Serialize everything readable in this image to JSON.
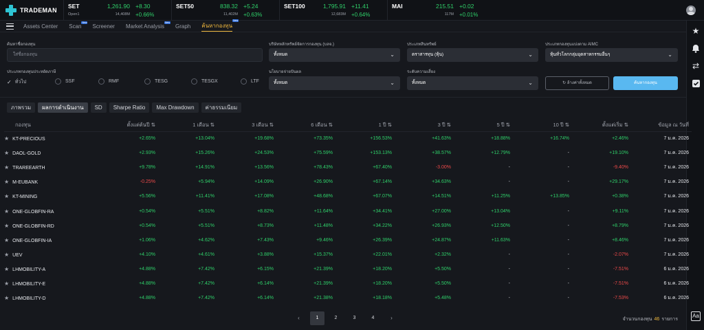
{
  "brand": {
    "name": "TRADEMAN"
  },
  "tickers": [
    {
      "name": "SET",
      "last": "1,261.90",
      "change": "+8.30",
      "sub": "Open1",
      "volume": "14,408M",
      "pct": "+0.66%"
    },
    {
      "name": "SET50",
      "last": "838.32",
      "change": "+5.24",
      "sub": "",
      "volume": "11,402M",
      "pct": "+0.63%"
    },
    {
      "name": "SET100",
      "last": "1,795.91",
      "change": "+11.41",
      "sub": "",
      "volume": "12,683M",
      "pct": "+0.64%"
    },
    {
      "name": "MAI",
      "last": "215.51",
      "change": "+0.02",
      "sub": "",
      "volume": "117M",
      "pct": "+0.01%"
    }
  ],
  "nav": {
    "tabs": [
      {
        "label": "Assets Center",
        "badge": ""
      },
      {
        "label": "Scan",
        "badge": "New"
      },
      {
        "label": "Screener",
        "badge": ""
      },
      {
        "label": "Market Analysis",
        "badge": "New"
      },
      {
        "label": "Graph",
        "badge": ""
      },
      {
        "label": "ค้นหากองทุน",
        "badge": "New"
      }
    ]
  },
  "filters": {
    "fund_search_label": "ค้นหาชื่อกองทุน",
    "fund_search_placeholder": "ใส่ชื่อกองทุน",
    "amc_label": "บริษัทหลักทรัพย์จัดการกองทุน (บลจ.)",
    "amc_value": "ทั้งหมด",
    "asset_label": "ประเภทสินทรัพย์",
    "asset_value": "ตราสารทุน (หุ้น)",
    "aimc_label": "ประเภทกองทุนแบ่งตาม AIMC",
    "aimc_value": "หุ้นทั่วโลกกลุ่มอุตสาหกรรมอื่นๆ",
    "type_label": "ประเภทกองทุนประหยัดภาษี",
    "type_options": [
      "ทั่วไป",
      "SSF",
      "RMF",
      "TESG",
      "TESGX",
      "LTF"
    ],
    "dividend_label": "นโยบายจ่ายปันผล",
    "dividend_value": "ทั้งหมด",
    "risk_label": "ระดับความเสี่ยง",
    "risk_value": "ทั้งหมด",
    "reset_label": "ล้างค่าทั้งหมด",
    "search_label": "ค้นหากองทุน"
  },
  "view_tabs": [
    "ภาพรวม",
    "ผลการดำเนินงาน",
    "SD",
    "Sharpe Ratio",
    "Max Drawdown",
    "ค่าธรรมเนียม"
  ],
  "table": {
    "headers": [
      "กองทุน",
      "ตั้งแต่ต้นปี ⇅",
      "1 เดือน ⇅",
      "3 เดือน ⇅",
      "6 เดือน ⇅",
      "1 ปี ⇅",
      "3 ปี ⇅",
      "5 ปี ⇅",
      "10 ปี ⇅",
      "ตั้งแต่เริ่ม ⇅",
      "ข้อมูล ณ วันที่"
    ],
    "rows": [
      [
        "KT-PRECIOUS",
        "+2.65%",
        "+13.04%",
        "+19.68%",
        "+73.35%",
        "+156.53%",
        "+41.63%",
        "+18.88%",
        "+16.74%",
        "+2.46%",
        "7 ม.ค. 2026"
      ],
      [
        "DAOL-GOLD",
        "+2.93%",
        "+15.26%",
        "+24.53%",
        "+75.59%",
        "+153.13%",
        "+38.57%",
        "+12.79%",
        "-",
        "+19.10%",
        "7 ม.ค. 2026"
      ],
      [
        "TRAREEARTH",
        "+9.78%",
        "+14.91%",
        "+13.56%",
        "+78.43%",
        "+67.40%",
        "-3.00%",
        "-",
        "-",
        "-9.40%",
        "7 ม.ค. 2026"
      ],
      [
        "M-EUBANK",
        "-0.25%",
        "+5.94%",
        "+14.09%",
        "+26.90%",
        "+67.14%",
        "+34.63%",
        "-",
        "-",
        "+29.17%",
        "7 ม.ค. 2026"
      ],
      [
        "KT-MINING",
        "+5.56%",
        "+11.41%",
        "+17.08%",
        "+48.68%",
        "+67.07%",
        "+14.51%",
        "+11.25%",
        "+13.85%",
        "+0.38%",
        "7 ม.ค. 2026"
      ],
      [
        "ONE-GLOBFIN-RA",
        "+0.54%",
        "+5.51%",
        "+8.82%",
        "+11.64%",
        "+34.41%",
        "+27.00%",
        "+13.04%",
        "-",
        "+9.11%",
        "7 ม.ค. 2026"
      ],
      [
        "ONE-GLOBFIN-RD",
        "+0.54%",
        "+5.51%",
        "+8.73%",
        "+11.48%",
        "+34.22%",
        "+26.93%",
        "+12.50%",
        "-",
        "+8.79%",
        "7 ม.ค. 2026"
      ],
      [
        "ONE-GLOBFIN-IA",
        "+1.06%",
        "+4.62%",
        "+7.43%",
        "+9.46%",
        "+26.39%",
        "+24.87%",
        "+11.63%",
        "-",
        "+8.46%",
        "7 ม.ค. 2026"
      ],
      [
        "UEV",
        "+4.10%",
        "+4.61%",
        "+3.88%",
        "+15.37%",
        "+22.01%",
        "+2.32%",
        "-",
        "-",
        "-2.07%",
        "7 ม.ค. 2026"
      ],
      [
        "LHMOBILITY-A",
        "+4.88%",
        "+7.42%",
        "+6.15%",
        "+21.39%",
        "+18.20%",
        "+5.50%",
        "-",
        "-",
        "-7.51%",
        "6 ม.ค. 2026"
      ],
      [
        "LHMOBILITY-E",
        "+4.88%",
        "+7.42%",
        "+6.14%",
        "+21.39%",
        "+18.20%",
        "+5.50%",
        "-",
        "-",
        "-7.51%",
        "6 ม.ค. 2026"
      ],
      [
        "LHMOBILITY-D",
        "+4.88%",
        "+7.42%",
        "+6.14%",
        "+21.38%",
        "+18.18%",
        "+5.48%",
        "-",
        "-",
        "-7.53%",
        "6 ม.ค. 2026"
      ]
    ]
  },
  "pagination": {
    "pages": [
      "1",
      "2",
      "3",
      "4"
    ],
    "current": "1",
    "prev": "‹",
    "next": "›"
  },
  "count": {
    "prefix": "จำนวนกองทุน",
    "value": "46",
    "suffix": "รายการ"
  },
  "colors": {
    "positive": "#2fd16a",
    "negative": "#ee4a4a",
    "accent": "#f1b93d",
    "primary_button": "#59b8f0"
  }
}
